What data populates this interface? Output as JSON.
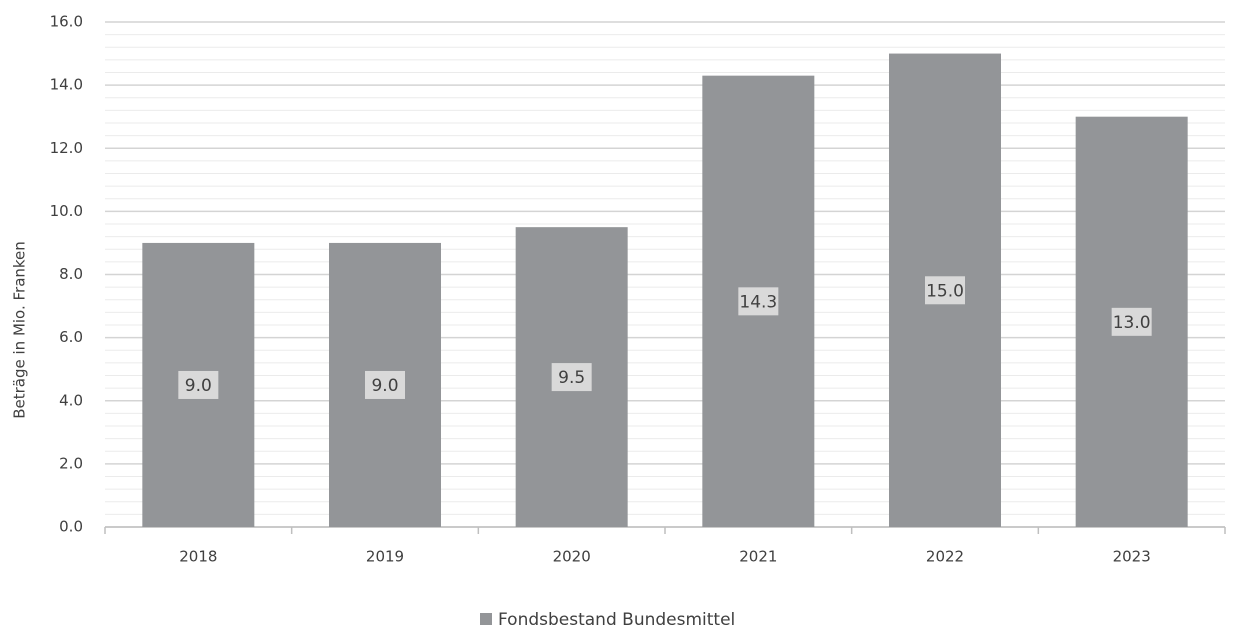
{
  "chart_data": {
    "type": "bar",
    "y_label": "Beträge in Mio. Franken",
    "categories": [
      "2018",
      "2019",
      "2020",
      "2021",
      "2022",
      "2023"
    ],
    "series": [
      {
        "name": "Fondsbestand Bundesmittel",
        "color": "#939598",
        "values": [
          9.0,
          9.0,
          9.5,
          14.3,
          15.0,
          13.0
        ],
        "value_labels": [
          "9.0",
          "9.0",
          "9.5",
          "14.3",
          "15.0",
          "13.0"
        ]
      }
    ],
    "ylim": [
      0,
      16
    ],
    "yticks": [
      {
        "value": 0,
        "label": "0.0"
      },
      {
        "value": 2,
        "label": "2.0"
      },
      {
        "value": 4,
        "label": "4.0"
      },
      {
        "value": 6,
        "label": "6.0"
      },
      {
        "value": 8,
        "label": "8.0"
      },
      {
        "value": 10,
        "label": "10.0"
      },
      {
        "value": 12,
        "label": "12.0"
      },
      {
        "value": 14,
        "label": "14.0"
      },
      {
        "value": 16,
        "label": "16.0"
      }
    ],
    "minor_yticks": [
      0.4,
      0.8,
      1.2,
      1.6,
      2.4,
      2.8,
      3.2,
      3.6,
      4.4,
      4.8,
      5.2,
      5.6,
      6.4,
      6.8,
      7.2,
      7.6,
      8.4,
      8.8,
      9.2,
      9.6,
      10.4,
      10.8,
      11.2,
      11.6,
      12.4,
      12.8,
      13.2,
      13.6,
      14.4,
      14.8,
      15.2,
      15.6
    ],
    "grid": true,
    "legend": "bottom"
  }
}
